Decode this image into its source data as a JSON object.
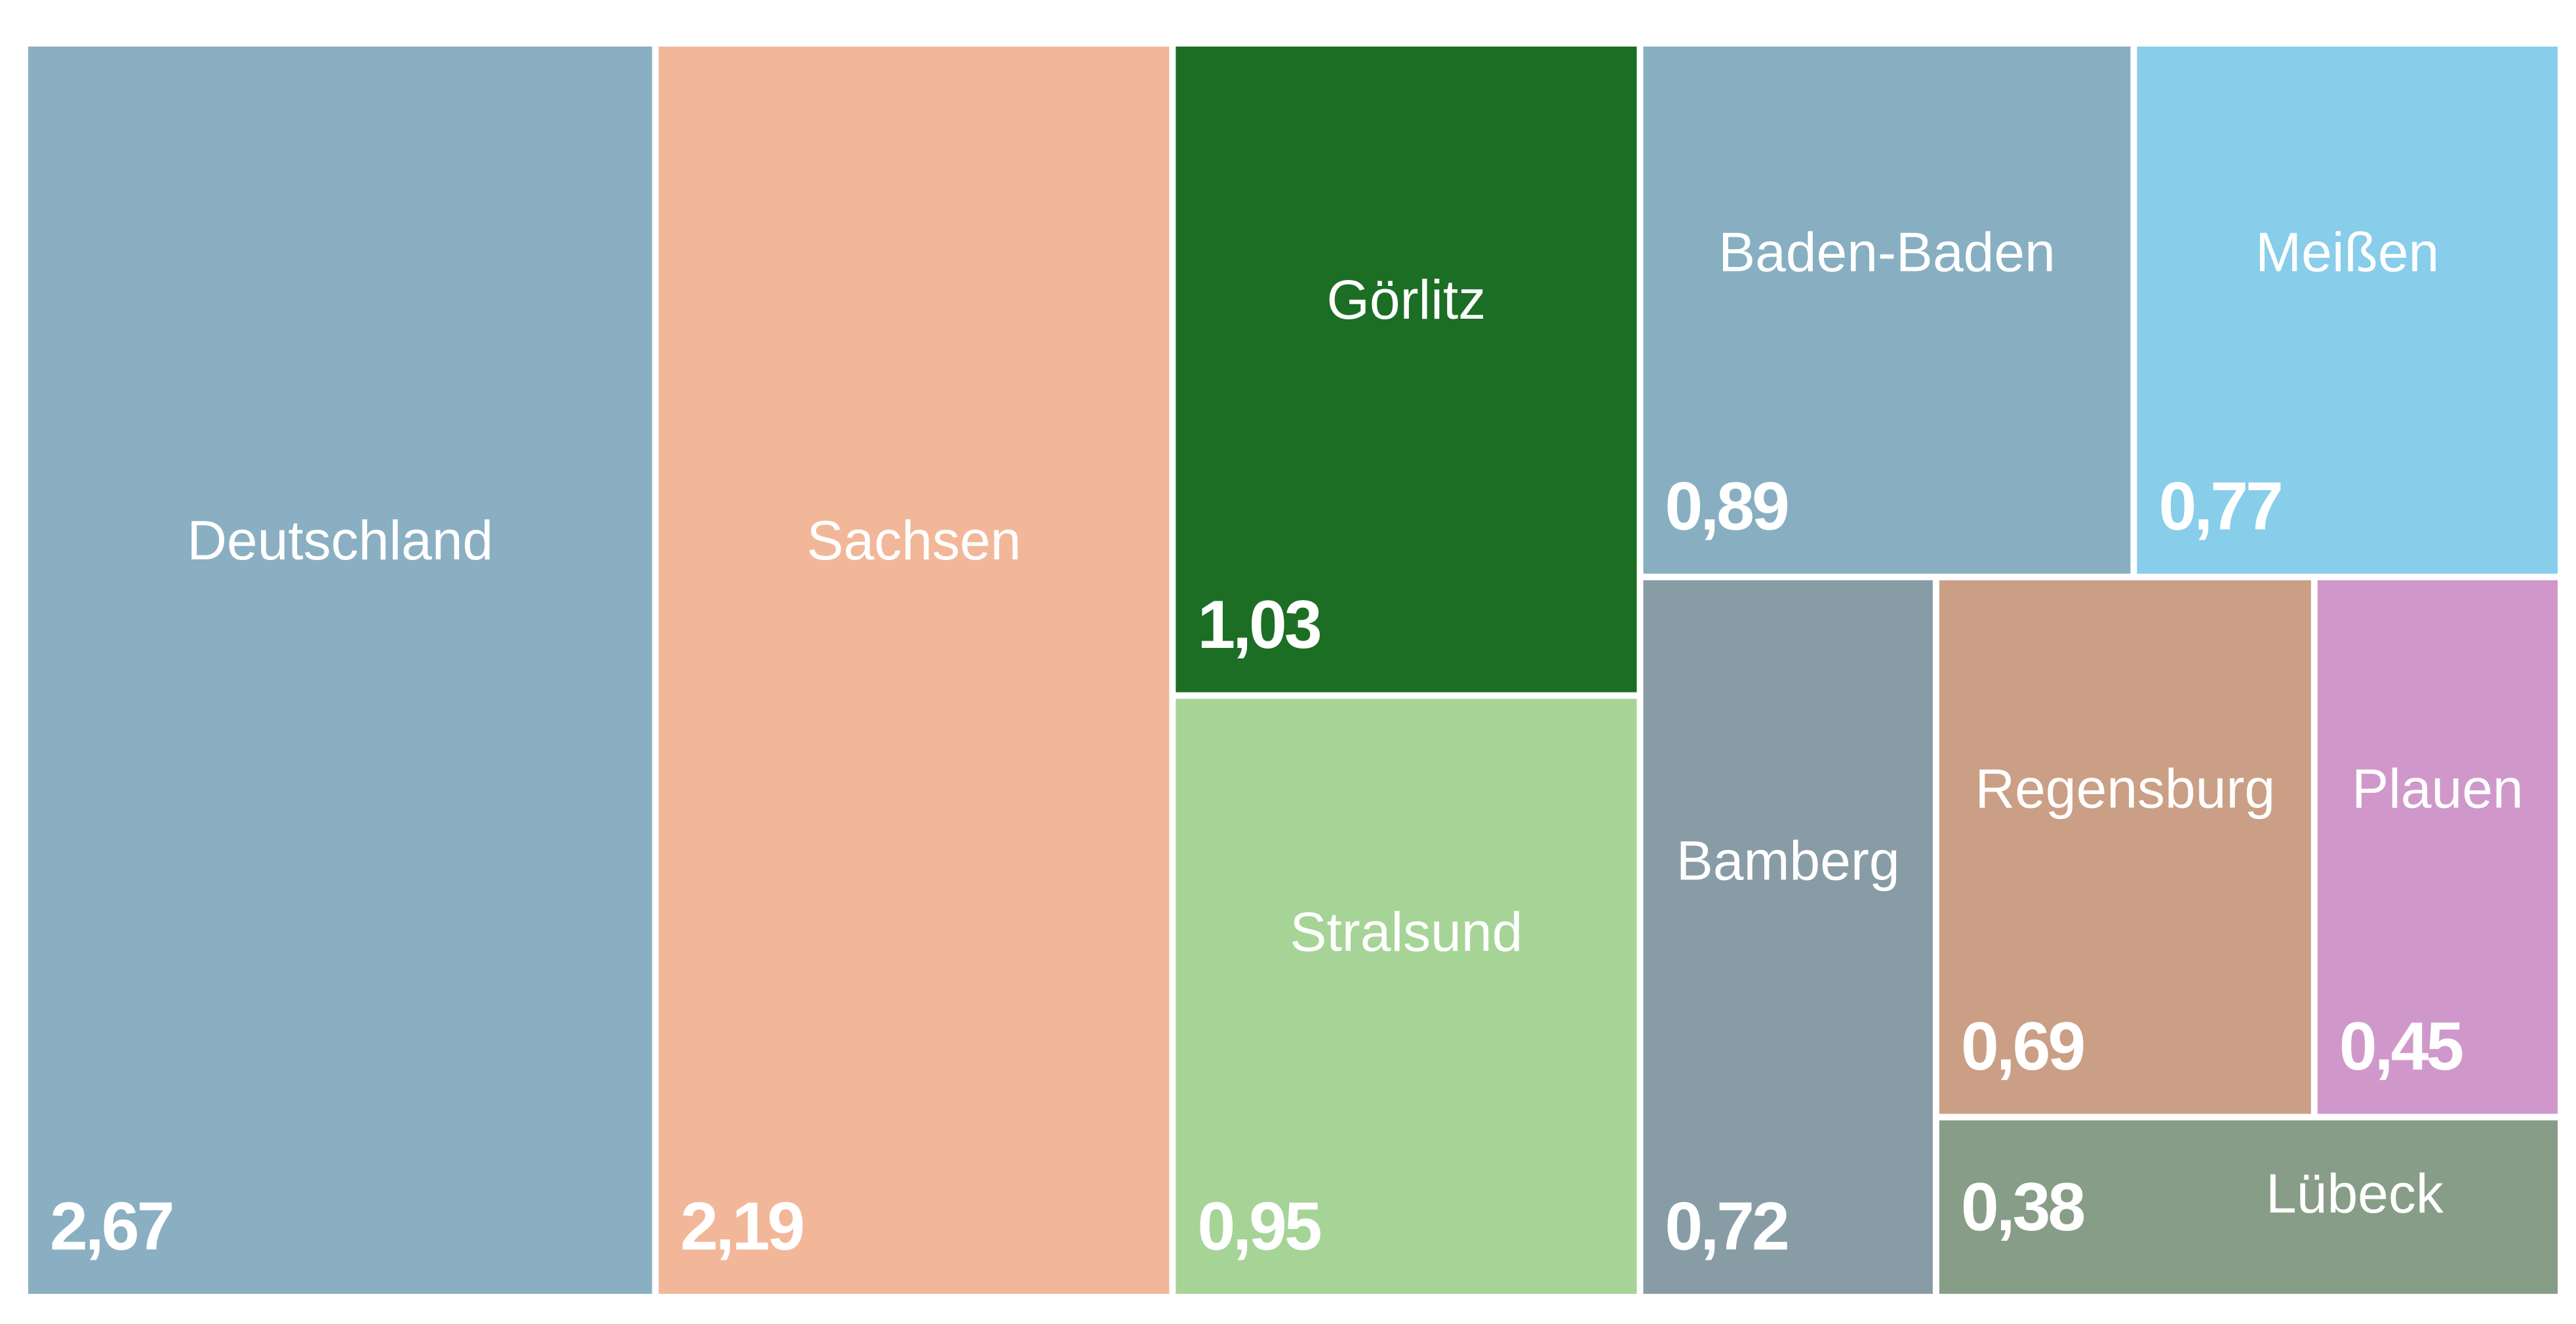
{
  "chart_data": {
    "type": "treemap",
    "categories": [
      "Deutschland",
      "Sachsen",
      "Görlitz",
      "Stralsund",
      "Baden-Baden",
      "Meißen",
      "Bamberg",
      "Regensburg",
      "Plauen",
      "Lübeck"
    ],
    "values": [
      2.67,
      2.19,
      1.03,
      0.95,
      0.89,
      0.77,
      0.72,
      0.69,
      0.45,
      0.38
    ],
    "value_labels": [
      "2,67",
      "2,19",
      "1,03",
      "0,95",
      "0,89",
      "0,77",
      "0,72",
      "0,69",
      "0,45",
      "0,38"
    ],
    "colors": [
      "#8aafc2",
      "#f2b799",
      "#1b6e24",
      "#a6d497",
      "#87afc1",
      "#88cdea",
      "#889ca6",
      "#cb9f85",
      "#d098ca",
      "#879d87"
    ]
  }
}
